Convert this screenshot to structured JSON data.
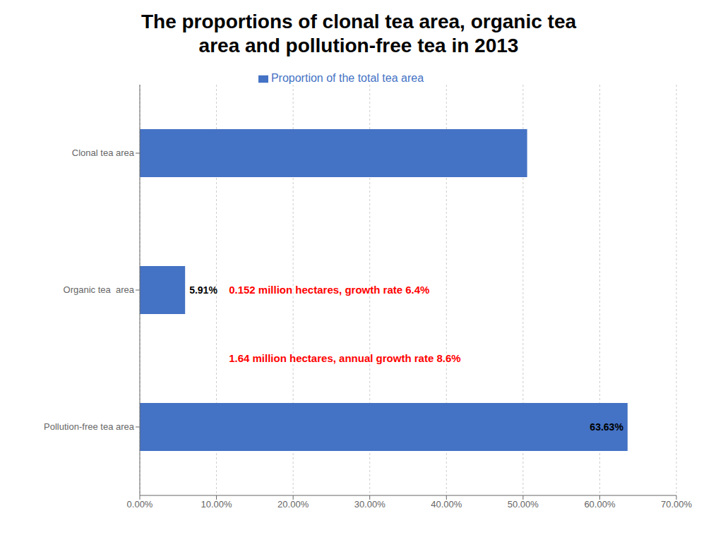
{
  "chart_data": {
    "type": "bar",
    "orientation": "horizontal",
    "title": "The proportions of clonal tea area, organic tea\narea and pollution-free tea in 2013",
    "categories": [
      "Pollution-free tea area",
      "Organic tea  area",
      "Clonal tea area"
    ],
    "series": [
      {
        "name": "Proportion of the total tea area",
        "color": "#4472C4",
        "values": [
          0.6363,
          0.0591,
          0.5053
        ],
        "value_labels": [
          "63.63%",
          "5.91%",
          null
        ]
      }
    ],
    "xlim": [
      0,
      0.7
    ],
    "xticks": [
      {
        "value": 0.0,
        "label": "0.00%"
      },
      {
        "value": 0.1,
        "label": "10.00%"
      },
      {
        "value": 0.2,
        "label": "20.00%"
      },
      {
        "value": 0.3,
        "label": "30.00%"
      },
      {
        "value": 0.4,
        "label": "40.00%"
      },
      {
        "value": 0.5,
        "label": "50.00%"
      },
      {
        "value": 0.6,
        "label": "60.00%"
      },
      {
        "value": 0.7,
        "label": "70.00%"
      }
    ],
    "grid": true,
    "legend": "top",
    "data_labels": true,
    "annotations": [
      {
        "text": "0.152 million hectares, growth rate 6.4%",
        "color": "#FF0000"
      },
      {
        "text": "1.64 million hectares, annual growth rate 8.6%",
        "color": "#FF0000"
      }
    ]
  }
}
